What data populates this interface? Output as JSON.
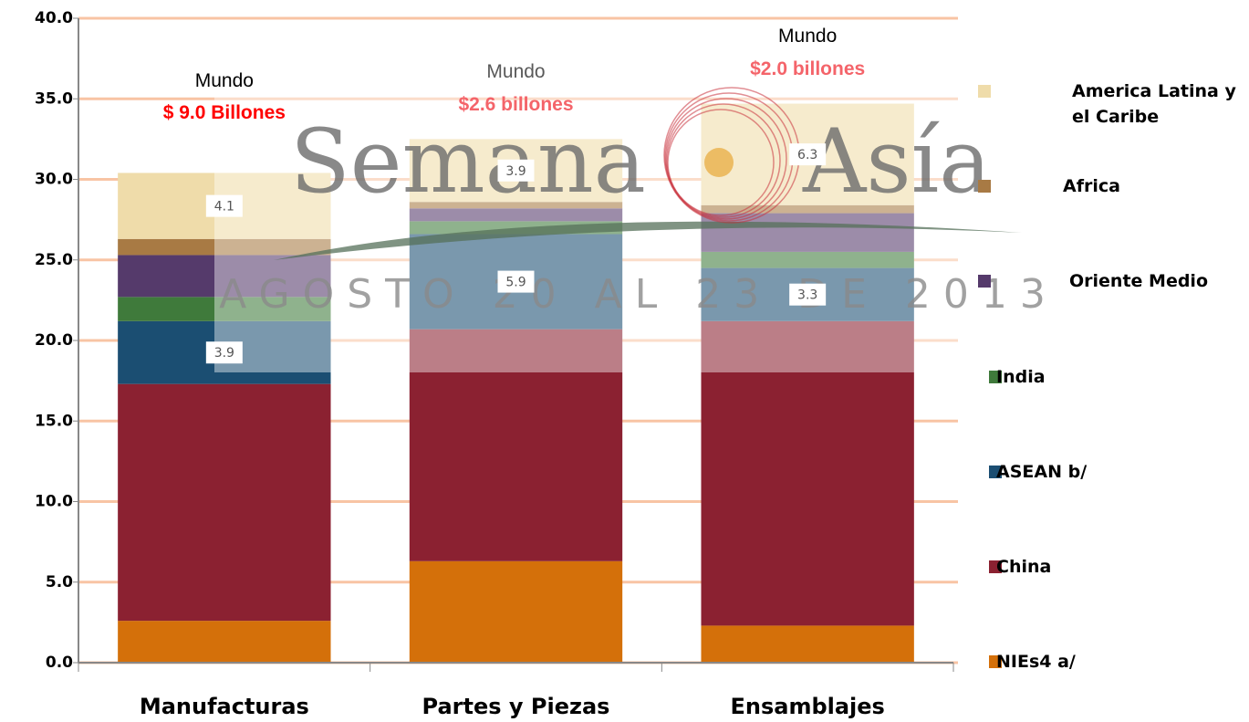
{
  "chart_data": {
    "type": "stacked_bar",
    "categories": [
      "Manufacturas",
      "Partes y Piezas",
      "Ensamblajes"
    ],
    "series": [
      {
        "name": "NIEs4 a/",
        "color": "#d4700a",
        "values": [
          2.6,
          6.3,
          2.3
        ],
        "value_labels": [
          null,
          null,
          null
        ]
      },
      {
        "name": "China",
        "color": "#8b2131",
        "values": [
          14.7,
          14.4,
          18.9
        ],
        "value_labels": [
          null,
          null,
          null
        ]
      },
      {
        "name": "ASEAN b/",
        "color": "#1b4e72",
        "values": [
          3.9,
          5.9,
          3.3
        ],
        "value_labels": [
          "3.9",
          "5.9",
          "3.3"
        ]
      },
      {
        "name": "India",
        "color": "#3f7a3b",
        "values": [
          1.5,
          0.8,
          1.0
        ],
        "value_labels": [
          null,
          null,
          null
        ]
      },
      {
        "name": "Oriente Medio",
        "color": "#553a6b",
        "values": [
          2.6,
          0.8,
          2.4
        ],
        "value_labels": [
          null,
          null,
          null
        ]
      },
      {
        "name": "Africa",
        "color": "#a87a44",
        "values": [
          1.0,
          0.4,
          0.5
        ],
        "value_labels": [
          null,
          null,
          null
        ]
      },
      {
        "name": "America Latina y el Caribe",
        "color": "#efdcaa",
        "values": [
          4.1,
          3.9,
          6.3
        ],
        "value_labels": [
          "4.1",
          "3.9",
          "6.3"
        ]
      }
    ],
    "annotations": [
      {
        "title": "Mundo",
        "text": "$ 9.0 Billones",
        "title_color": "#000000",
        "color": "#ff0000"
      },
      {
        "title": "Mundo",
        "text": "$2.6 billones",
        "title_color": "#595959",
        "color": "#f4646a"
      },
      {
        "title": "Mundo",
        "text": "$2.0 billones",
        "title_color": "#000000",
        "color": "#f4646a"
      }
    ],
    "watermark": {
      "word1": "Semana",
      "word2": "Asía",
      "subtitle": "AGOSTO 20 AL 23 DE 2013"
    },
    "ylim": [
      0,
      40
    ],
    "yticks": [
      {
        "value": 0,
        "label": "0.0"
      },
      {
        "value": 5,
        "label": "5.0"
      },
      {
        "value": 10,
        "label": "10.0"
      },
      {
        "value": 15,
        "label": "15.0"
      },
      {
        "value": 20,
        "label": "20.0"
      },
      {
        "value": 25,
        "label": "25.0"
      },
      {
        "value": 30,
        "label": "30.0"
      },
      {
        "value": 35,
        "label": "35.0"
      },
      {
        "value": 40,
        "label": "40.0"
      }
    ],
    "grid": true,
    "legend": "right"
  }
}
